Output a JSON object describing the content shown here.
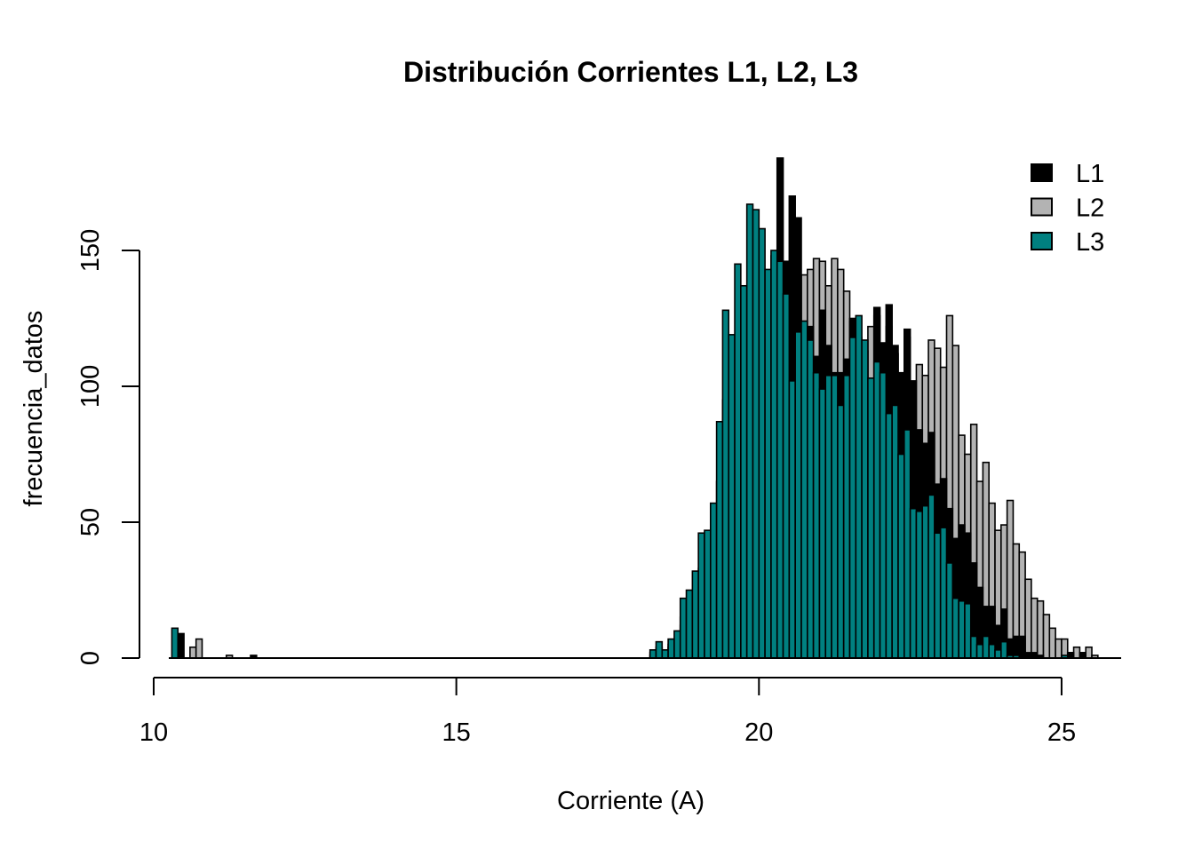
{
  "chart_data": {
    "type": "bar",
    "subtype": "overlapping-histogram",
    "title": "Distribución Corrientes L1, L2, L3",
    "xlabel": "Corriente (A)",
    "ylabel": "frecuencia_datos",
    "xlim": [
      10,
      26
    ],
    "ylim": [
      0,
      185
    ],
    "xticks": [
      10,
      15,
      20,
      25
    ],
    "yticks": [
      0,
      50,
      100,
      150
    ],
    "grid": false,
    "legend_position": "top-right",
    "bin_width": 0.1,
    "draw_order": [
      "L2",
      "L1",
      "L3"
    ],
    "bin_starts": [
      10.3,
      10.4,
      10.6,
      10.7,
      11.2,
      11.6,
      18.2,
      18.3,
      18.4,
      18.5,
      18.6,
      18.7,
      18.8,
      18.9,
      19.0,
      19.1,
      19.2,
      19.3,
      19.4,
      19.5,
      19.6,
      19.7,
      19.8,
      19.9,
      20.0,
      20.1,
      20.2,
      20.3,
      20.4,
      20.5,
      20.6,
      20.7,
      20.8,
      20.9,
      21.0,
      21.1,
      21.2,
      21.3,
      21.4,
      21.5,
      21.6,
      21.7,
      21.8,
      21.9,
      22.0,
      22.1,
      22.2,
      22.3,
      22.4,
      22.5,
      22.6,
      22.7,
      22.8,
      22.9,
      23.0,
      23.1,
      23.2,
      23.3,
      23.4,
      23.5,
      23.6,
      23.7,
      23.8,
      23.9,
      24.0,
      24.1,
      24.2,
      24.3,
      24.4,
      24.5,
      24.6,
      24.7,
      24.8,
      24.9,
      25.0,
      25.1,
      25.2,
      25.3,
      25.4,
      25.5
    ],
    "series": [
      {
        "name": "L1",
        "color": "#000000",
        "values": [
          0,
          9,
          0,
          0,
          0,
          1,
          2,
          4,
          2,
          5,
          7,
          15,
          18,
          23,
          33,
          35,
          42,
          65,
          95,
          90,
          110,
          105,
          128,
          130,
          125,
          120,
          148,
          184,
          146,
          170,
          162,
          122,
          122,
          111,
          128,
          115,
          105,
          105,
          110,
          125,
          118,
          113,
          101,
          129,
          116,
          130,
          115,
          105,
          121,
          102,
          84,
          79,
          83,
          64,
          66,
          55,
          44,
          49,
          46,
          35,
          26,
          19,
          19,
          12,
          18,
          7,
          8,
          8,
          2,
          2,
          1,
          0,
          0,
          0,
          0,
          2,
          0,
          2,
          0,
          0
        ]
      },
      {
        "name": "L2",
        "color": "#b3b3b3",
        "values": [
          0,
          0,
          4,
          7,
          1,
          0,
          1,
          3,
          2,
          4,
          6,
          12,
          15,
          20,
          28,
          30,
          38,
          55,
          80,
          78,
          95,
          95,
          110,
          112,
          115,
          118,
          120,
          125,
          128,
          135,
          138,
          141,
          143,
          147,
          146,
          137,
          147,
          143,
          135,
          124,
          116,
          115,
          122,
          126,
          113,
          122,
          112,
          104,
          118,
          100,
          108,
          104,
          117,
          114,
          107,
          126,
          115,
          82,
          75,
          86,
          65,
          72,
          57,
          47,
          49,
          58,
          42,
          39,
          29,
          22,
          21,
          16,
          11,
          7,
          7,
          2,
          4,
          2,
          4,
          1
        ]
      },
      {
        "name": "L3",
        "color": "#008080",
        "values": [
          11,
          0,
          0,
          0,
          0,
          0,
          3,
          6,
          3,
          7,
          10,
          22,
          25,
          32,
          46,
          47,
          57,
          87,
          128,
          119,
          145,
          137,
          167,
          165,
          158,
          143,
          150,
          146,
          134,
          102,
          120,
          124,
          117,
          105,
          99,
          104,
          104,
          93,
          104,
          118,
          126,
          117,
          103,
          109,
          105,
          90,
          93,
          75,
          84,
          55,
          54,
          56,
          60,
          46,
          48,
          35,
          22,
          21,
          20,
          8,
          5,
          8,
          5,
          3,
          6,
          1,
          1,
          0,
          0,
          0,
          0,
          0,
          0,
          0,
          1,
          0,
          0,
          0,
          0,
          0
        ]
      }
    ]
  }
}
